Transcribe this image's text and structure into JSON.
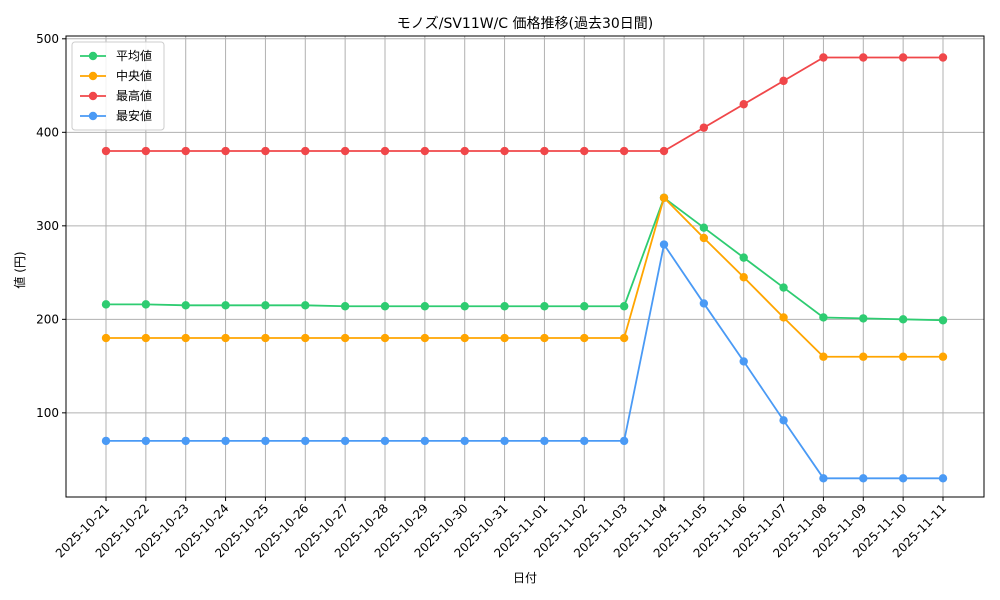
{
  "chart_data": {
    "type": "line",
    "title": "モノズ/SV11W/C 価格推移(過去30日間)",
    "xlabel": "日付",
    "ylabel": "値 (円)",
    "categories": [
      "2025-10-21",
      "2025-10-22",
      "2025-10-23",
      "2025-10-24",
      "2025-10-25",
      "2025-10-26",
      "2025-10-27",
      "2025-10-28",
      "2025-10-29",
      "2025-10-30",
      "2025-10-31",
      "2025-11-01",
      "2025-11-02",
      "2025-11-03",
      "2025-11-04",
      "2025-11-05",
      "2025-11-06",
      "2025-11-07",
      "2025-11-08",
      "2025-11-09",
      "2025-11-10",
      "2025-11-11"
    ],
    "ylim": [
      10,
      503
    ],
    "yticks": [
      100,
      200,
      300,
      400,
      500
    ],
    "grid": true,
    "legend_position": "top-left",
    "series": [
      {
        "name": "平均値",
        "color": "#2ecc71",
        "values": [
          216,
          216,
          215,
          215,
          215,
          215,
          214,
          214,
          214,
          214,
          214,
          214,
          214,
          214,
          330,
          298,
          266,
          234,
          202,
          201,
          200,
          199
        ]
      },
      {
        "name": "中央値",
        "color": "#ffa500",
        "values": [
          180,
          180,
          180,
          180,
          180,
          180,
          180,
          180,
          180,
          180,
          180,
          180,
          180,
          180,
          330,
          287,
          245,
          202,
          160,
          160,
          160,
          160
        ]
      },
      {
        "name": "最高値",
        "color": "#f0474a",
        "values": [
          380,
          380,
          380,
          380,
          380,
          380,
          380,
          380,
          380,
          380,
          380,
          380,
          380,
          380,
          380,
          405,
          430,
          455,
          480,
          480,
          480,
          480
        ]
      },
      {
        "name": "最安値",
        "color": "#4a9af5",
        "values": [
          70,
          70,
          70,
          70,
          70,
          70,
          70,
          70,
          70,
          70,
          70,
          70,
          70,
          70,
          280,
          217,
          155,
          92,
          30,
          30,
          30,
          30
        ]
      }
    ]
  }
}
